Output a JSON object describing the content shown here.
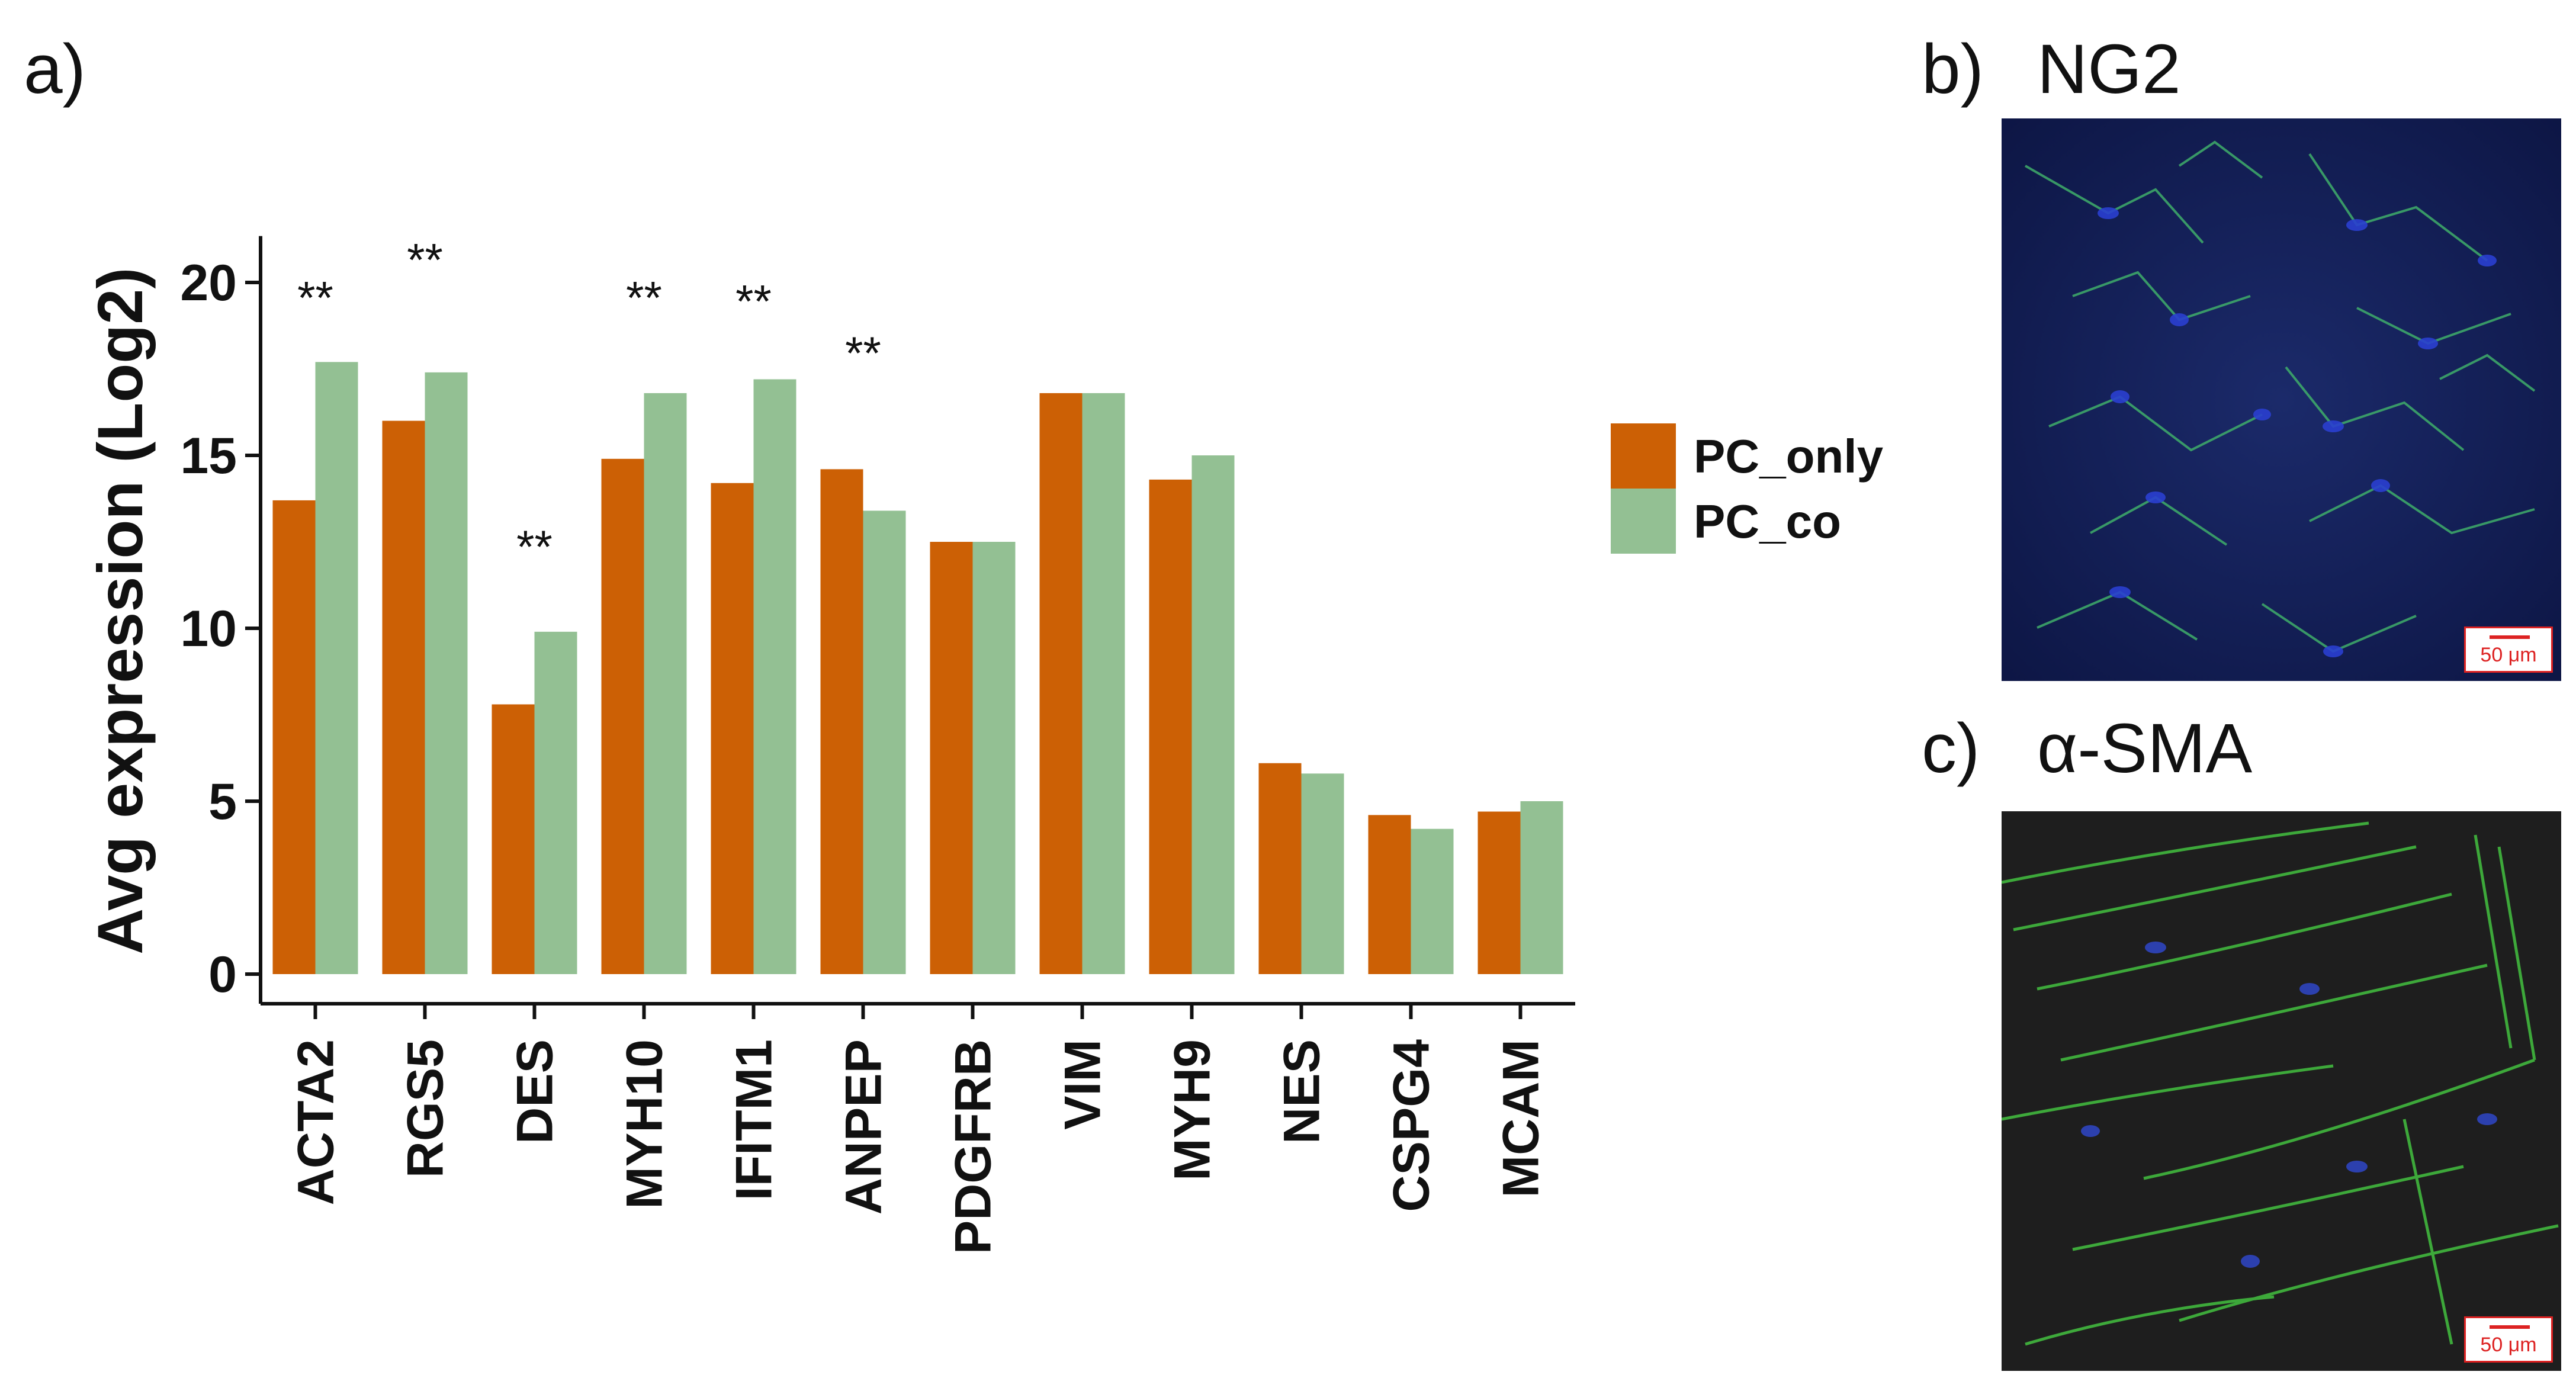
{
  "panels": {
    "a_label": "a)",
    "b_label": "b)",
    "c_label": "c)"
  },
  "images": {
    "b_title": "NG2",
    "c_title": "α-SMA",
    "scale_label": "50 μm"
  },
  "chart_data": {
    "type": "bar",
    "ylabel": "Avg expression (Log2)",
    "xlabel": "",
    "ylim": [
      0,
      21
    ],
    "yticks": [
      0,
      5,
      10,
      15,
      20
    ],
    "categories": [
      "ACTA2",
      "RGS5",
      "DES",
      "MYH10",
      "IFITM1",
      "ANPEP",
      "PDGFRB",
      "VIM",
      "MYH9",
      "NES",
      "CSPG4",
      "MCAM"
    ],
    "series": [
      {
        "name": "PC_only",
        "color": "#cc6005",
        "values": [
          13.7,
          16.0,
          7.8,
          14.9,
          14.2,
          14.6,
          12.5,
          16.8,
          14.3,
          6.1,
          4.6,
          4.7
        ]
      },
      {
        "name": "PC_co",
        "color": "#93c093",
        "values": [
          17.7,
          17.4,
          9.9,
          16.8,
          17.2,
          13.4,
          12.5,
          16.8,
          15.0,
          5.8,
          4.2,
          5.0
        ]
      }
    ],
    "annotations": [
      {
        "category": "ACTA2",
        "text": "**",
        "y": 19.1
      },
      {
        "category": "RGS5",
        "text": "**",
        "y": 20.2
      },
      {
        "category": "DES",
        "text": "**",
        "y": 11.9
      },
      {
        "category": "MYH10",
        "text": "**",
        "y": 19.1
      },
      {
        "category": "IFITM1",
        "text": "**",
        "y": 19.0
      },
      {
        "category": "ANPEP",
        "text": "**",
        "y": 17.5
      }
    ],
    "legend": {
      "position": "right"
    },
    "grid": false
  }
}
